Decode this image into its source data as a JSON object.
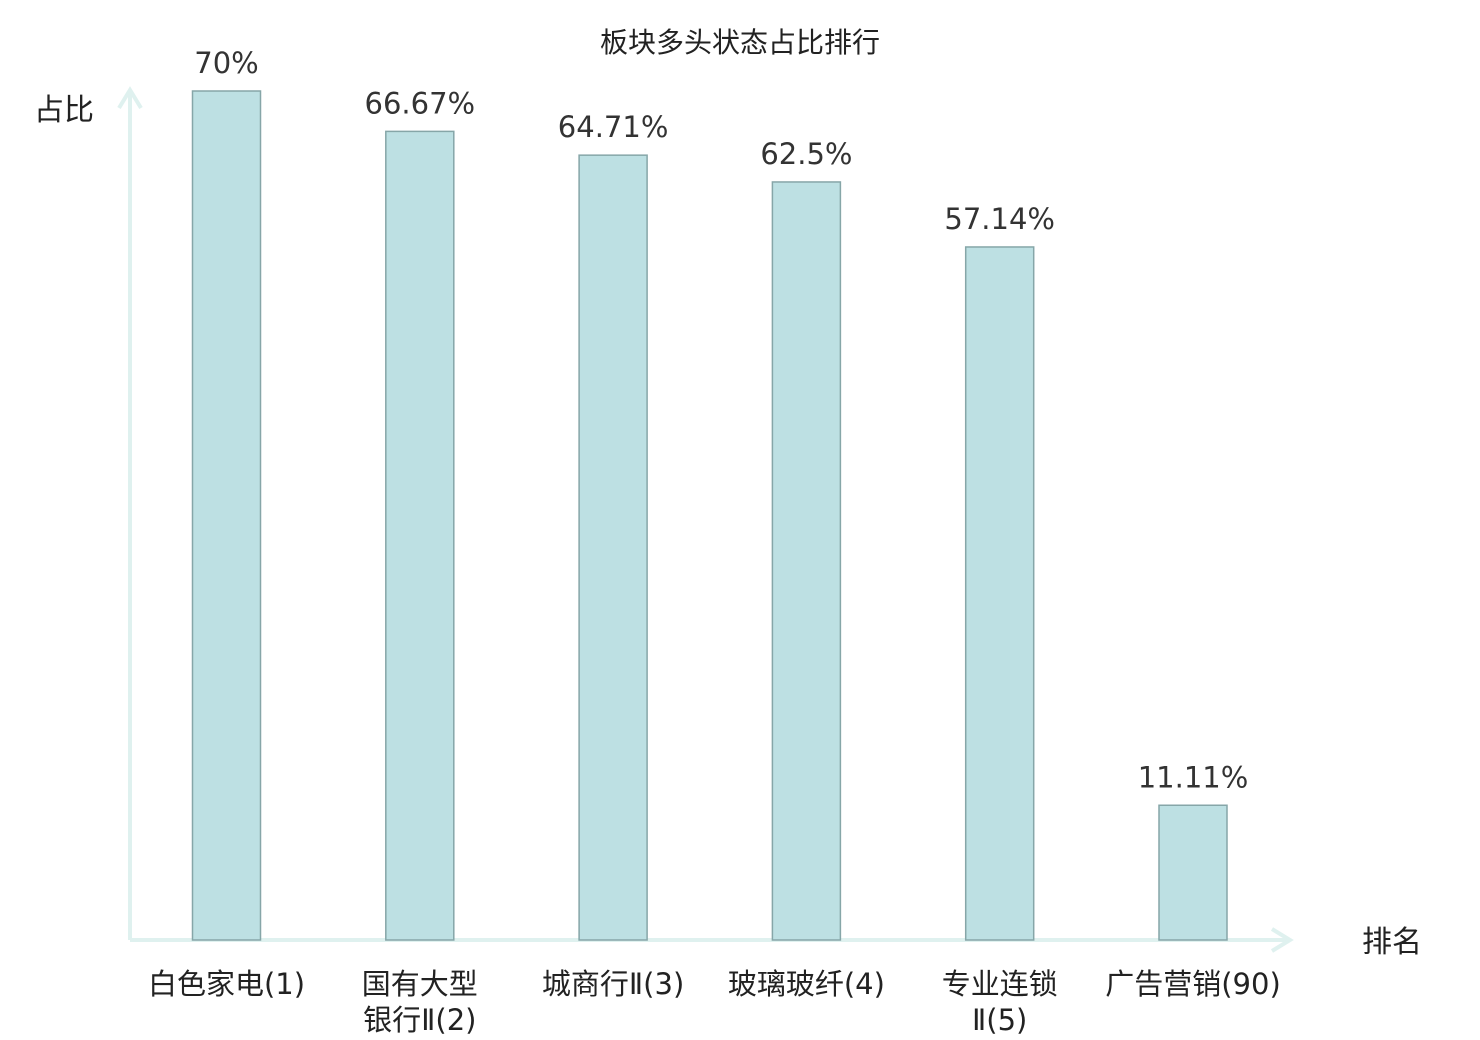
{
  "chart_data": {
    "type": "bar",
    "title": "板块多头状态占比排行",
    "ylabel": "占比",
    "xlabel": "排名",
    "categories": [
      [
        "白色家电(1)"
      ],
      [
        "国有大型",
        "银行Ⅱ(2)"
      ],
      [
        "城商行Ⅱ(3)"
      ],
      [
        "玻璃玻纤(4)"
      ],
      [
        "专业连锁",
        "Ⅱ(5)"
      ],
      [
        "广告营销(90)"
      ]
    ],
    "values": [
      70,
      66.67,
      64.71,
      62.5,
      57.14,
      11.11
    ],
    "value_labels": [
      "70%",
      "66.67%",
      "64.71%",
      "62.5%",
      "57.14%",
      "11.11%"
    ],
    "highlight_categories": [
      5
    ],
    "ylim": [
      0,
      70
    ],
    "grid": false,
    "legend": "none",
    "colors": {
      "bar_fill": "#bde0e3",
      "bar_stroke": "#86a6a8",
      "axis": "#dff1ef",
      "text": "#222222",
      "value_text": "#333333",
      "highlight": "#e02020"
    }
  }
}
